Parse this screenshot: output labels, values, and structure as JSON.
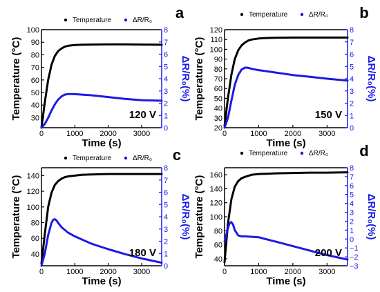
{
  "colors": {
    "temperature": "#000000",
    "resistance": "#1a1ae6",
    "axis": "#000000"
  },
  "chart_data": [
    {
      "type": "line",
      "panel_label": "a",
      "voltage_label": "120 V",
      "xlabel": "Time (s)",
      "ylabel": "Temperature (°C)",
      "ylabel2": "ΔR/R₀(%)",
      "xlim": [
        0,
        3600
      ],
      "ylim": [
        22,
        100
      ],
      "ylim2": [
        0,
        8
      ],
      "xticks": [
        0,
        1000,
        2000,
        3000
      ],
      "yticks": [
        30,
        40,
        50,
        60,
        70,
        80,
        90,
        100
      ],
      "yticks2": [
        0,
        1,
        2,
        3,
        4,
        5,
        6,
        7,
        8
      ],
      "legend": {
        "placement": "top-right",
        "entries": [
          "Temperature",
          "ΔR/R₀"
        ]
      },
      "series": [
        {
          "name": "Temperature",
          "axis": "left",
          "x": [
            0,
            100,
            200,
            300,
            400,
            500,
            600,
            700,
            800,
            1000,
            1200,
            1500,
            2000,
            2500,
            3000,
            3600
          ],
          "y": [
            22,
            42,
            60,
            72,
            79,
            83,
            85,
            86.5,
            87.2,
            87.8,
            88,
            88.2,
            88.3,
            88.3,
            88.2,
            88
          ]
        },
        {
          "name": "ΔR/R₀",
          "axis": "right",
          "x": [
            0,
            100,
            200,
            300,
            400,
            500,
            600,
            700,
            800,
            900,
            1000,
            1500,
            2000,
            2500,
            3000,
            3600
          ],
          "y": [
            0,
            0.3,
            0.8,
            1.4,
            1.9,
            2.3,
            2.55,
            2.7,
            2.75,
            2.75,
            2.74,
            2.65,
            2.5,
            2.35,
            2.25,
            2.2
          ]
        }
      ]
    },
    {
      "type": "line",
      "panel_label": "b",
      "voltage_label": "150 V",
      "xlabel": "Time (s)",
      "ylabel": "Temperature (°C)",
      "ylabel2": "ΔR/R₀(%)",
      "xlim": [
        0,
        3600
      ],
      "ylim": [
        20,
        120
      ],
      "ylim2": [
        0,
        8
      ],
      "xticks": [
        0,
        1000,
        2000,
        3000
      ],
      "yticks": [
        20,
        30,
        40,
        50,
        60,
        70,
        80,
        90,
        100,
        110,
        120
      ],
      "yticks2": [
        0,
        1,
        2,
        3,
        4,
        5,
        6,
        7,
        8
      ],
      "legend": {
        "placement": "top-right",
        "entries": [
          "Temperature",
          "ΔR/R₀"
        ]
      },
      "series": [
        {
          "name": "Temperature",
          "axis": "left",
          "x": [
            0,
            100,
            200,
            300,
            400,
            500,
            600,
            700,
            800,
            1000,
            1200,
            1500,
            2000,
            2500,
            3000,
            3600
          ],
          "y": [
            22,
            50,
            74,
            90,
            99,
            104,
            107,
            109,
            110,
            111,
            111.5,
            111.8,
            112,
            112,
            112,
            112
          ]
        },
        {
          "name": "ΔR/R₀",
          "axis": "right",
          "x": [
            0,
            100,
            200,
            300,
            400,
            500,
            600,
            650,
            700,
            800,
            1000,
            1500,
            2000,
            2500,
            3000,
            3600
          ],
          "y": [
            0,
            0.8,
            2.2,
            3.5,
            4.3,
            4.75,
            4.9,
            4.9,
            4.88,
            4.8,
            4.7,
            4.5,
            4.3,
            4.15,
            4.0,
            3.85
          ]
        }
      ]
    },
    {
      "type": "line",
      "panel_label": "c",
      "voltage_label": "180 V",
      "xlabel": "Time (s)",
      "ylabel": "Temperature (°C)",
      "ylabel2": "ΔR/R₀(%)",
      "xlim": [
        0,
        3600
      ],
      "ylim": [
        25,
        150
      ],
      "ylim2": [
        0,
        8
      ],
      "xticks": [
        0,
        1000,
        2000,
        3000
      ],
      "yticks": [
        40,
        60,
        80,
        100,
        120,
        140
      ],
      "yticks2": [
        0,
        1,
        2,
        3,
        4,
        5,
        6,
        7,
        8
      ],
      "legend": {
        "placement": "top-right",
        "entries": [
          "Temperature",
          "ΔR/R₀"
        ]
      },
      "series": [
        {
          "name": "Temperature",
          "axis": "left",
          "x": [
            0,
            100,
            200,
            300,
            400,
            500,
            600,
            700,
            800,
            1000,
            1200,
            1500,
            2000,
            2500,
            3000,
            3600
          ],
          "y": [
            28,
            65,
            100,
            118,
            128,
            133,
            136,
            138,
            139,
            140,
            141,
            141.5,
            142,
            142,
            142,
            142
          ]
        },
        {
          "name": "ΔR/R₀",
          "axis": "right",
          "x": [
            0,
            100,
            200,
            300,
            350,
            400,
            450,
            500,
            600,
            800,
            1000,
            1500,
            2000,
            2500,
            3000,
            3600
          ],
          "y": [
            0,
            1.0,
            2.5,
            3.5,
            3.75,
            3.8,
            3.7,
            3.5,
            3.15,
            2.7,
            2.4,
            1.8,
            1.35,
            0.95,
            0.6,
            0.25
          ]
        }
      ]
    },
    {
      "type": "line",
      "panel_label": "d",
      "voltage_label": "200 V",
      "xlabel": "Time (s)",
      "ylabel": "Temperature (°C)",
      "ylabel2": "ΔR/R₀(%)",
      "xlim": [
        0,
        3600
      ],
      "ylim": [
        30,
        170
      ],
      "ylim2": [
        -3,
        8
      ],
      "xticks": [
        0,
        1000,
        2000,
        3000
      ],
      "yticks": [
        40,
        60,
        80,
        100,
        120,
        140,
        160
      ],
      "yticks2": [
        -3,
        -2,
        -1,
        0,
        1,
        2,
        3,
        4,
        5,
        6,
        7,
        8
      ],
      "legend": {
        "placement": "top-right",
        "entries": [
          "Temperature",
          "ΔR/R₀"
        ]
      },
      "series": [
        {
          "name": "Temperature",
          "axis": "left",
          "x": [
            0,
            100,
            200,
            300,
            400,
            500,
            600,
            800,
            1000,
            1500,
            2000,
            2500,
            3000,
            3600
          ],
          "y": [
            35,
            90,
            125,
            143,
            151,
            155,
            157,
            160,
            161,
            162,
            162.5,
            163,
            163,
            163.5
          ]
        },
        {
          "name": "ΔR/R₀",
          "axis": "right",
          "x": [
            0,
            100,
            150,
            200,
            250,
            300,
            400,
            500,
            600,
            1000,
            1500,
            2000,
            2500,
            3000,
            3600
          ],
          "y": [
            -0.3,
            1.2,
            1.8,
            1.9,
            1.6,
            1.0,
            0.4,
            0.3,
            0.3,
            0.2,
            -0.3,
            -0.8,
            -1.3,
            -1.8,
            -2.3
          ]
        }
      ]
    }
  ]
}
